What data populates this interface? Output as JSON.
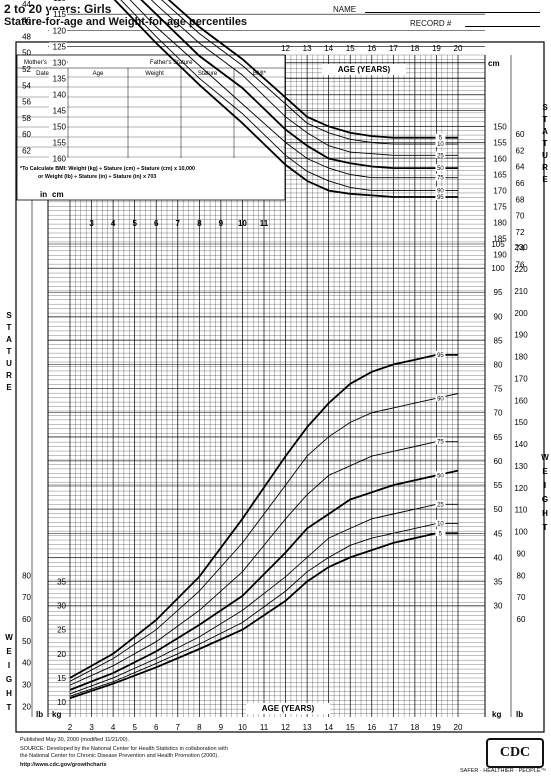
{
  "header": {
    "title": "2 to 20 years: Girls",
    "subtitle": "Stature-for-age and Weight-for-age percentiles",
    "name_label": "NAME",
    "record_label": "RECORD #"
  },
  "form": {
    "mothers_stature": "Mother's Stature",
    "fathers_stature": "Father's Stature",
    "columns": [
      "Date",
      "Age",
      "Weight",
      "Stature",
      "BMI*"
    ],
    "bmi_note_line1": "*To Calculate BMI: Weight (kg) ÷ Stature (cm) ÷ Stature (cm) x 10,000",
    "bmi_note_line2": "or Weight (lb) ÷ Stature (in) ÷ Stature (in) x 703"
  },
  "footer": {
    "published": "Published May 30, 2000 (modified 11/21/00).",
    "source1": "SOURCE: Developed by the National Center for Health Statistics in collaboration with",
    "source2": "the National Center for Chronic Disease Prevention and Health Promotion (2000).",
    "url": "http://www.cdc.gov/growthcharts",
    "logo": "CDC",
    "tagline": "SAFER · HEALTHIER · PEOPLE™"
  },
  "chart_data": {
    "type": "line",
    "x_axis_label": "AGE (YEARS)",
    "xlim": [
      2,
      20
    ],
    "x_ticks": [
      2,
      3,
      4,
      5,
      6,
      7,
      8,
      9,
      10,
      11,
      12,
      13,
      14,
      15,
      16,
      17,
      18,
      19,
      20
    ],
    "stature_label": "STATURE",
    "weight_label": "WEIGHT",
    "unit_cm": "cm",
    "unit_in": "in",
    "unit_kg": "kg",
    "unit_lb": "lb",
    "stature_cm_ticks": [
      80,
      85,
      90,
      95,
      100,
      105,
      110,
      115,
      120,
      125,
      130,
      135,
      140,
      145,
      150,
      155,
      160
    ],
    "stature_cm_ticks_right": [
      150,
      155,
      160,
      165,
      170,
      175,
      180,
      185,
      190
    ],
    "stature_in_ticks_left": [
      30,
      32,
      34,
      36,
      38,
      40,
      42,
      44,
      46,
      48,
      50,
      52,
      54,
      56,
      58,
      60,
      62
    ],
    "stature_in_ticks_right": [
      60,
      62,
      64,
      66,
      68,
      70,
      72,
      74,
      76
    ],
    "weight_kg_ticks_right": [
      30,
      35,
      40,
      45,
      50,
      55,
      60,
      65,
      70,
      75,
      80,
      85,
      90,
      95,
      100,
      105
    ],
    "weight_lb_ticks_right": [
      60,
      70,
      80,
      90,
      100,
      110,
      120,
      130,
      140,
      150,
      160,
      170,
      180,
      190,
      200,
      210,
      220,
      230
    ],
    "weight_kg_ticks_left": [
      10,
      15,
      20,
      25,
      30,
      35
    ],
    "weight_lb_ticks_left": [
      20,
      30,
      40,
      50,
      60,
      70,
      80
    ],
    "percentile_labels": [
      "95",
      "90",
      "75",
      "50",
      "25",
      "10",
      "5"
    ],
    "stature_series": [
      {
        "name": "95",
        "x": [
          2,
          4,
          6,
          8,
          10,
          12,
          13,
          14,
          15,
          16,
          17,
          18,
          19,
          20
        ],
        "y": [
          93,
          110,
          124,
          137,
          149,
          162,
          167,
          170,
          171,
          171.5,
          172,
          172,
          172,
          172
        ]
      },
      {
        "name": "90",
        "x": [
          2,
          4,
          6,
          8,
          10,
          12,
          13,
          14,
          15,
          16,
          17,
          18,
          19,
          20
        ],
        "y": [
          92,
          108,
          122,
          135,
          146,
          159,
          164,
          167,
          169,
          170,
          170,
          170,
          170,
          170
        ]
      },
      {
        "name": "75",
        "x": [
          2,
          4,
          6,
          8,
          10,
          12,
          13,
          14,
          15,
          16,
          17,
          18,
          19,
          20
        ],
        "y": [
          90,
          105,
          119,
          131,
          143,
          155,
          160,
          163,
          165,
          166,
          166,
          166,
          166,
          166
        ]
      },
      {
        "name": "50",
        "x": [
          2,
          4,
          6,
          8,
          10,
          12,
          13,
          14,
          15,
          16,
          17,
          18,
          19,
          20
        ],
        "y": [
          87,
          102,
          115,
          128,
          138,
          151,
          156,
          160,
          161.5,
          162.5,
          163,
          163,
          163,
          163
        ]
      },
      {
        "name": "25",
        "x": [
          2,
          4,
          6,
          8,
          10,
          12,
          13,
          14,
          15,
          16,
          17,
          18,
          19,
          20
        ],
        "y": [
          84,
          99,
          112,
          124,
          134,
          147,
          152,
          156,
          158,
          158.5,
          159,
          159,
          159,
          159
        ]
      },
      {
        "name": "10",
        "x": [
          2,
          4,
          6,
          8,
          10,
          12,
          13,
          14,
          15,
          16,
          17,
          18,
          19,
          20
        ],
        "y": [
          82,
          97,
          109,
          121,
          131,
          143,
          149,
          152,
          154,
          155,
          155.5,
          155.5,
          155.5,
          155.5
        ]
      },
      {
        "name": "5",
        "x": [
          2,
          4,
          6,
          8,
          10,
          12,
          13,
          14,
          15,
          16,
          17,
          18,
          19,
          20
        ],
        "y": [
          81,
          95,
          107,
          119,
          129,
          141,
          147,
          150,
          152,
          153,
          153.5,
          153.5,
          153.5,
          153.5
        ]
      }
    ],
    "weight_series": [
      {
        "name": "95",
        "x": [
          2,
          4,
          6,
          8,
          10,
          12,
          13,
          14,
          15,
          16,
          17,
          18,
          19,
          20
        ],
        "y": [
          15,
          20,
          27,
          36,
          48,
          61,
          67,
          72,
          76,
          78.5,
          80,
          81,
          82,
          82
        ]
      },
      {
        "name": "90",
        "x": [
          2,
          4,
          6,
          8,
          10,
          12,
          13,
          14,
          15,
          16,
          17,
          18,
          19,
          20
        ],
        "y": [
          14.3,
          19,
          25,
          33,
          43,
          55,
          61,
          65,
          68,
          70,
          71,
          72,
          73,
          74
        ]
      },
      {
        "name": "75",
        "x": [
          2,
          4,
          6,
          8,
          10,
          12,
          13,
          14,
          15,
          16,
          17,
          18,
          19,
          20
        ],
        "y": [
          13.5,
          17.5,
          22.5,
          29,
          37,
          48,
          53,
          57,
          59,
          61,
          62,
          63,
          64,
          64
        ]
      },
      {
        "name": "50",
        "x": [
          2,
          4,
          6,
          8,
          10,
          12,
          13,
          14,
          15,
          16,
          17,
          18,
          19,
          20
        ],
        "y": [
          12.5,
          16,
          20.5,
          26,
          32,
          41,
          46,
          49,
          52,
          53.5,
          55,
          56,
          57,
          58
        ]
      },
      {
        "name": "25",
        "x": [
          2,
          4,
          6,
          8,
          10,
          12,
          13,
          14,
          15,
          16,
          17,
          18,
          19,
          20
        ],
        "y": [
          11.7,
          15,
          19,
          23.5,
          29,
          36,
          40,
          44,
          46,
          48,
          49,
          50,
          51,
          51
        ]
      },
      {
        "name": "10",
        "x": [
          2,
          4,
          6,
          8,
          10,
          12,
          13,
          14,
          15,
          16,
          17,
          18,
          19,
          20
        ],
        "y": [
          11.2,
          14.2,
          18,
          22,
          26.5,
          33,
          37,
          40,
          42.5,
          44,
          45,
          46,
          47,
          47
        ]
      },
      {
        "name": "5",
        "x": [
          2,
          4,
          6,
          8,
          10,
          12,
          13,
          14,
          15,
          16,
          17,
          18,
          19,
          20
        ],
        "y": [
          10.8,
          13.8,
          17.2,
          21,
          25,
          31,
          35,
          38,
          40,
          41.5,
          43,
          44,
          45,
          45
        ]
      }
    ]
  }
}
